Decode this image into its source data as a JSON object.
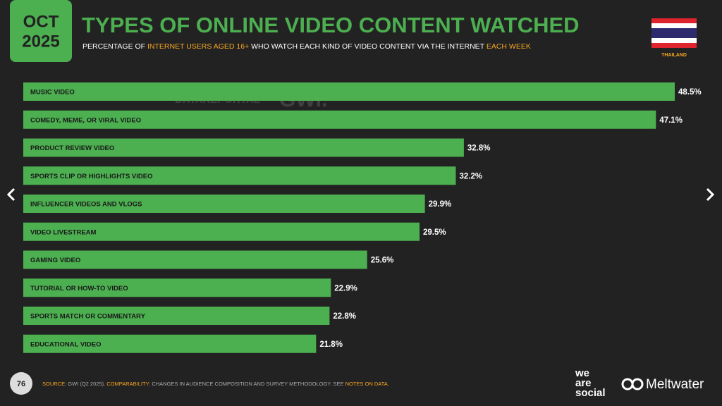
{
  "header": {
    "badge": {
      "month": "OCT",
      "year": "2025"
    },
    "title": "TYPES OF ONLINE VIDEO CONTENT WATCHED",
    "subtitle": [
      {
        "text": "PERCENTAGE OF ",
        "color": "#ffffff"
      },
      {
        "text": "INTERNET USERS AGED 16+",
        "color": "#f5a623"
      },
      {
        "text": " WHO WATCH EACH KIND OF VIDEO CONTENT VIA THE INTERNET ",
        "color": "#ffffff"
      },
      {
        "text": "EACH WEEK",
        "color": "#f5a623"
      }
    ],
    "country": "THAILAND"
  },
  "chart_data": {
    "type": "bar",
    "orientation": "horizontal",
    "categories": [
      "MUSIC VIDEO",
      "COMEDY, MEME, OR VIRAL VIDEO",
      "PRODUCT REVIEW VIDEO",
      "SPORTS CLIP OR HIGHLIGHTS VIDEO",
      "INFLUENCER VIDEOS AND VLOGS",
      "VIDEO LIVESTREAM",
      "GAMING VIDEO",
      "TUTORIAL OR HOW-TO VIDEO",
      "SPORTS MATCH OR COMMENTARY",
      "EDUCATIONAL VIDEO"
    ],
    "values": [
      48.5,
      47.1,
      32.8,
      32.2,
      29.9,
      29.5,
      25.6,
      22.9,
      22.8,
      21.8
    ],
    "value_labels": [
      "48.5%",
      "47.1%",
      "32.8%",
      "32.2%",
      "29.9%",
      "29.5%",
      "25.6%",
      "22.9%",
      "22.8%",
      "21.8%"
    ],
    "color": "#4caf50"
  },
  "watermark": [
    "DATAREPORTAL",
    "GWI."
  ],
  "footer": {
    "page": "76",
    "source": [
      {
        "text": "SOURCE: ",
        "color": "#f5a623"
      },
      {
        "text": "GWI (Q2 2025). ",
        "color": "#aaaaaa"
      },
      {
        "text": "COMPARABILITY: ",
        "color": "#f5a623"
      },
      {
        "text": "CHANGES IN AUDIENCE COMPOSITION AND SURVEY METHODOLOGY. SEE ",
        "color": "#aaaaaa"
      },
      {
        "text": "NOTES ON DATA",
        "color": "#f5a623"
      },
      {
        "text": ".",
        "color": "#aaaaaa"
      }
    ]
  },
  "logos": {
    "we_are_social": [
      "we",
      "are",
      "social"
    ],
    "meltwater": "Meltwater"
  }
}
